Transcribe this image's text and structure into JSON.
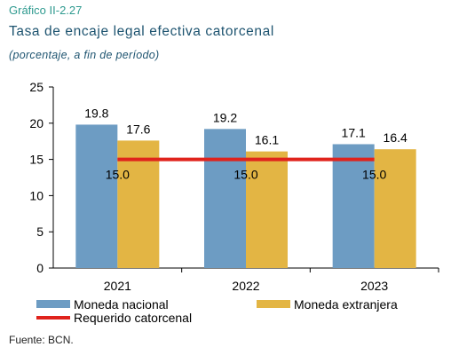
{
  "header": {
    "code": "Gráfico II-2.27",
    "title": "Tasa de encaje legal efectiva catorcenal",
    "subtitle": "(porcentaje, a fin de período)"
  },
  "source": "Fuente: BCN.",
  "chart_data": {
    "type": "bar",
    "categories": [
      "2021",
      "2022",
      "2023"
    ],
    "series": [
      {
        "name": "Moneda nacional",
        "values": [
          19.8,
          19.2,
          17.1
        ],
        "color": "#6d9cc3"
      },
      {
        "name": "Moneda extranjera",
        "values": [
          17.6,
          16.1,
          16.4
        ],
        "color": "#e3b544"
      }
    ],
    "line_series": {
      "name": "Requerido catorcenal",
      "values": [
        15.0,
        15.0,
        15.0
      ],
      "color": "#e0231c"
    },
    "ylim": [
      0,
      25
    ],
    "yticks": [
      0,
      5,
      10,
      15,
      20,
      25
    ],
    "grid": false,
    "legend": "bottom",
    "xlabel": "",
    "ylabel": ""
  }
}
